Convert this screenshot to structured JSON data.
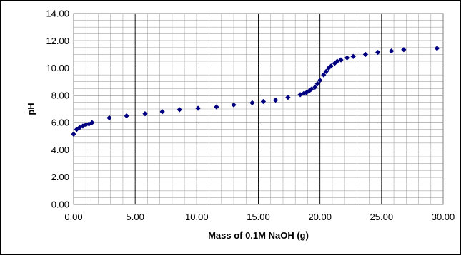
{
  "chart_data": {
    "type": "scatter",
    "xlabel": "Mass of 0.1M NaOH (g)",
    "ylabel": "pH",
    "xlim": [
      0,
      30
    ],
    "ylim": [
      0,
      14
    ],
    "x_ticks": [
      "0.00",
      "5.00",
      "10.00",
      "15.00",
      "20.00",
      "25.00",
      "30.00"
    ],
    "y_ticks": [
      "0.00",
      "2.00",
      "4.00",
      "6.00",
      "8.00",
      "10.00",
      "12.00",
      "14.00"
    ],
    "x_major_step": 5,
    "x_minor_step": 1,
    "y_major_step": 2,
    "y_minor_step": 0.5,
    "grid": true,
    "legend": "none",
    "marker": "diamond",
    "series_color": "#000080",
    "points": [
      [
        0.0,
        5.15
      ],
      [
        0.25,
        5.5
      ],
      [
        0.5,
        5.65
      ],
      [
        0.75,
        5.75
      ],
      [
        1.0,
        5.85
      ],
      [
        1.25,
        5.9
      ],
      [
        1.5,
        6.0
      ],
      [
        2.9,
        6.35
      ],
      [
        4.3,
        6.5
      ],
      [
        5.8,
        6.65
      ],
      [
        7.2,
        6.8
      ],
      [
        8.6,
        6.95
      ],
      [
        10.1,
        7.05
      ],
      [
        11.6,
        7.15
      ],
      [
        13.0,
        7.3
      ],
      [
        14.5,
        7.45
      ],
      [
        15.4,
        7.55
      ],
      [
        16.4,
        7.65
      ],
      [
        17.4,
        7.85
      ],
      [
        18.4,
        8.05
      ],
      [
        18.7,
        8.15
      ],
      [
        18.9,
        8.2
      ],
      [
        19.1,
        8.3
      ],
      [
        19.3,
        8.45
      ],
      [
        19.6,
        8.6
      ],
      [
        19.8,
        8.85
      ],
      [
        20.0,
        9.1
      ],
      [
        20.3,
        9.5
      ],
      [
        20.5,
        9.75
      ],
      [
        20.7,
        10.0
      ],
      [
        20.9,
        10.15
      ],
      [
        21.2,
        10.35
      ],
      [
        21.4,
        10.5
      ],
      [
        21.7,
        10.6
      ],
      [
        22.2,
        10.75
      ],
      [
        22.7,
        10.85
      ],
      [
        23.7,
        11.0
      ],
      [
        24.7,
        11.15
      ],
      [
        25.8,
        11.25
      ],
      [
        26.8,
        11.35
      ],
      [
        29.5,
        11.45
      ]
    ]
  }
}
